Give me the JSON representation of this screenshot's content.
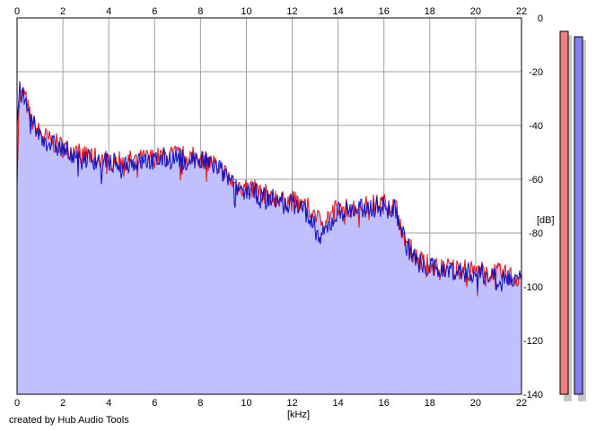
{
  "chart_data": {
    "type": "area",
    "xlabel": "[kHz]",
    "ylabel": "[dB]",
    "xlim": [
      0,
      22
    ],
    "ylim": [
      -140,
      0
    ],
    "x_ticks": [
      0,
      2,
      4,
      6,
      8,
      10,
      12,
      14,
      16,
      18,
      20,
      22
    ],
    "y_ticks": [
      0,
      -20,
      -40,
      -60,
      -80,
      -100,
      -120,
      -140
    ],
    "grid": true,
    "series": [
      {
        "color": "#e01010",
        "x": [
          0,
          0.1,
          0.3,
          0.6,
          1,
          1.5,
          2,
          3,
          4,
          5,
          6,
          7,
          8,
          8.8,
          9.5,
          10,
          11,
          12,
          12.5,
          13,
          13.2,
          14,
          15,
          16,
          16.5,
          17,
          17.5,
          18,
          19,
          20,
          21,
          21.5,
          22
        ],
        "values": [
          -59,
          -30,
          -28,
          -38,
          -43,
          -46,
          -48,
          -51,
          -53,
          -53,
          -52,
          -51,
          -52,
          -55,
          -62,
          -63,
          -66,
          -68,
          -70,
          -72,
          -76,
          -71,
          -70,
          -69,
          -70,
          -84,
          -90,
          -92,
          -93,
          -94,
          -95,
          -96,
          -97
        ]
      },
      {
        "color": "#1010c0",
        "x": [
          0,
          0.1,
          0.3,
          0.6,
          1,
          1.5,
          2,
          3,
          4,
          5,
          6,
          7,
          8,
          8.8,
          9.5,
          10,
          11,
          12,
          12.5,
          13,
          13.2,
          14,
          15,
          16,
          16.5,
          17,
          17.5,
          18,
          19,
          20,
          21,
          21.5,
          22
        ],
        "values": [
          -40,
          -27,
          -30,
          -38,
          -44,
          -47,
          -49,
          -52,
          -54,
          -54,
          -53,
          -52,
          -53,
          -56,
          -63,
          -64,
          -67,
          -69,
          -71,
          -78,
          -83,
          -72,
          -71,
          -70,
          -71,
          -85,
          -91,
          -93,
          -94,
          -95,
          -96,
          -97,
          -98
        ]
      }
    ],
    "meters": [
      {
        "color": "#f08080",
        "level_db": -5
      },
      {
        "color": "#8080f0",
        "level_db": -7
      }
    ],
    "fill_color": "#c0c0ff"
  },
  "footer": {
    "credit": "created by Hub Audio Tools"
  }
}
